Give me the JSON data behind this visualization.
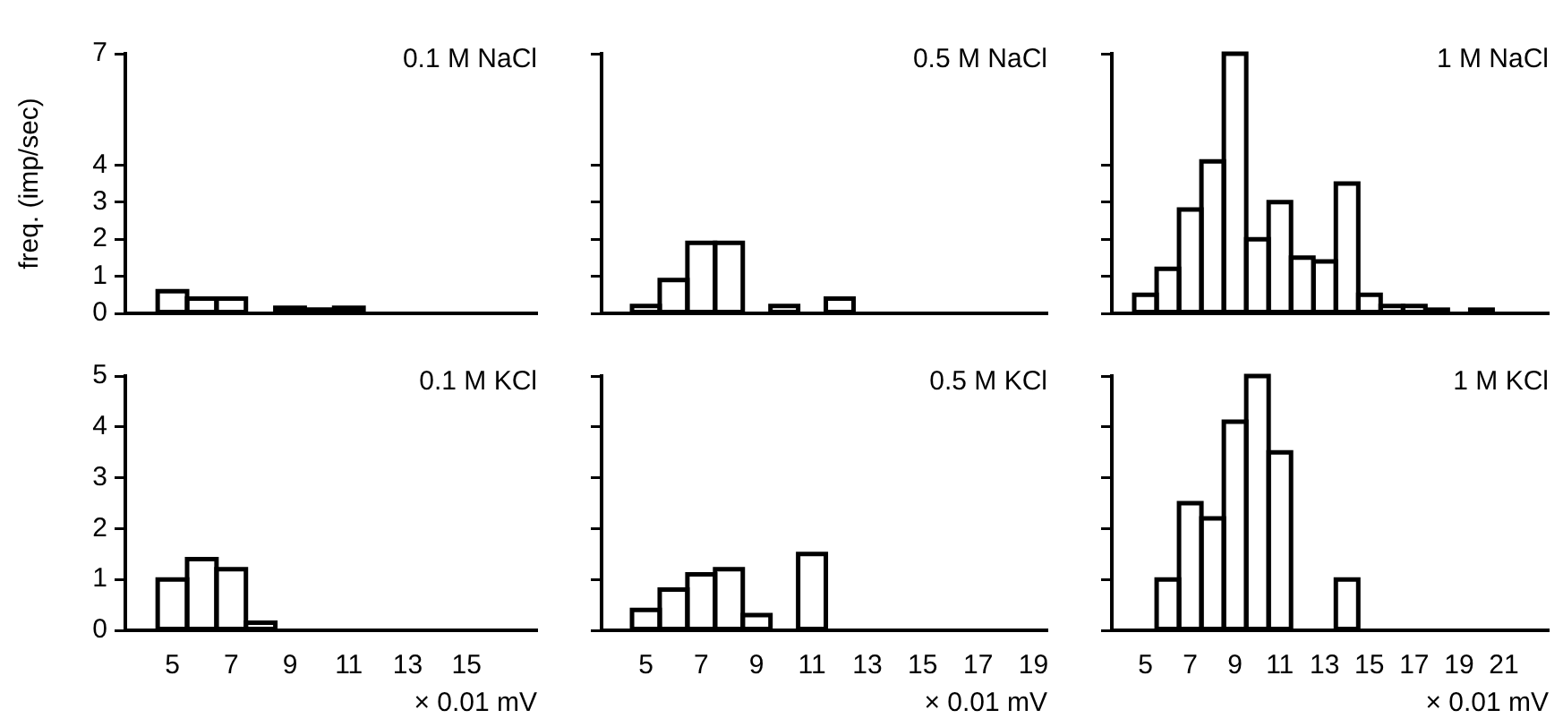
{
  "chart_data": [
    {
      "type": "histogram",
      "title": "0.1 M NaCl",
      "ylabel": "freq. (imp/sec)",
      "bins": [
        4.5,
        5.5,
        6.5,
        7.5,
        8.5,
        9.5,
        10.5,
        11.5
      ],
      "values": [
        0.6,
        0.4,
        0.4,
        0,
        0.15,
        0.1,
        0.15
      ],
      "color": "#000000",
      "xlim": [
        3.4,
        17.4
      ],
      "ylim": [
        0,
        7
      ],
      "yticks": [
        0,
        1,
        2,
        3,
        4,
        7
      ],
      "tick_labels": "y"
    },
    {
      "type": "histogram",
      "title": "0.5 M NaCl",
      "bins": [
        4.5,
        5.5,
        6.5,
        7.5,
        8.5,
        9.5,
        10.5,
        11.5,
        12.5
      ],
      "values": [
        0.2,
        0.9,
        1.9,
        1.9,
        0,
        0.2,
        0,
        0.4
      ],
      "color": "#000000",
      "xlim": [
        3.4,
        19.5
      ],
      "ylim": [
        0,
        7
      ],
      "yticks": [
        0,
        1,
        2,
        3,
        4,
        7
      ],
      "tick_labels": false
    },
    {
      "type": "histogram",
      "title": "1 M NaCl",
      "bins": [
        4.5,
        5.5,
        6.5,
        7.5,
        8.5,
        9.5,
        10.5,
        11.5,
        12.5,
        13.5,
        14.5,
        15.5,
        16.5,
        17.5,
        18.5,
        19.5,
        20.5
      ],
      "values": [
        0.5,
        1.2,
        2.8,
        4.1,
        7,
        2,
        3,
        1.5,
        1.4,
        3.5,
        0.5,
        0.2,
        0.2,
        0.1,
        0,
        0.1
      ],
      "color": "#000000",
      "xlim": [
        3.5,
        23
      ],
      "ylim": [
        0,
        7
      ],
      "yticks": [
        0,
        1,
        2,
        3,
        4,
        7
      ],
      "tick_labels": false
    },
    {
      "type": "histogram",
      "title": "0.1 M KCl",
      "xlabel": "× 0.01 mV",
      "bins": [
        4.5,
        5.5,
        6.5,
        7.5,
        8.5
      ],
      "values": [
        1,
        1.4,
        1.2,
        0.15
      ],
      "color": "#000000",
      "xlim": [
        3.4,
        17.4
      ],
      "xticks": [
        5,
        7,
        9,
        11,
        13,
        15
      ],
      "ylim": [
        0,
        5
      ],
      "yticks": [
        0,
        1,
        2,
        3,
        4,
        5
      ]
    },
    {
      "type": "histogram",
      "title": "0.5 M KCl",
      "xlabel": "× 0.01 mV",
      "bins": [
        4.5,
        5.5,
        6.5,
        7.5,
        8.5,
        9.5,
        10.5,
        11.5
      ],
      "values": [
        0.4,
        0.8,
        1.1,
        1.2,
        0.3,
        0,
        1.5
      ],
      "color": "#000000",
      "xlim": [
        3.4,
        19.5
      ],
      "xticks": [
        5,
        7,
        9,
        11,
        13,
        15,
        17,
        19
      ],
      "ylim": [
        0,
        5
      ],
      "yticks": [
        0,
        1,
        2,
        3,
        4,
        5
      ],
      "tick_labels": "x"
    },
    {
      "type": "histogram",
      "title": "1 M KCl",
      "xlabel": "× 0.01 mV",
      "bins": [
        5.5,
        6.5,
        7.5,
        8.5,
        9.5,
        10.5,
        11.5,
        12.5,
        13.5,
        14.5
      ],
      "values": [
        1,
        2.5,
        2.2,
        4.1,
        5,
        3.5,
        0,
        0,
        1
      ],
      "color": "#000000",
      "xlim": [
        3.5,
        23
      ],
      "xticks": [
        5,
        7,
        9,
        11,
        13,
        15,
        17,
        19,
        21
      ],
      "ylim": [
        0,
        5
      ],
      "yticks": [
        0,
        1,
        2,
        3,
        4,
        5
      ],
      "tick_labels": "x"
    }
  ]
}
